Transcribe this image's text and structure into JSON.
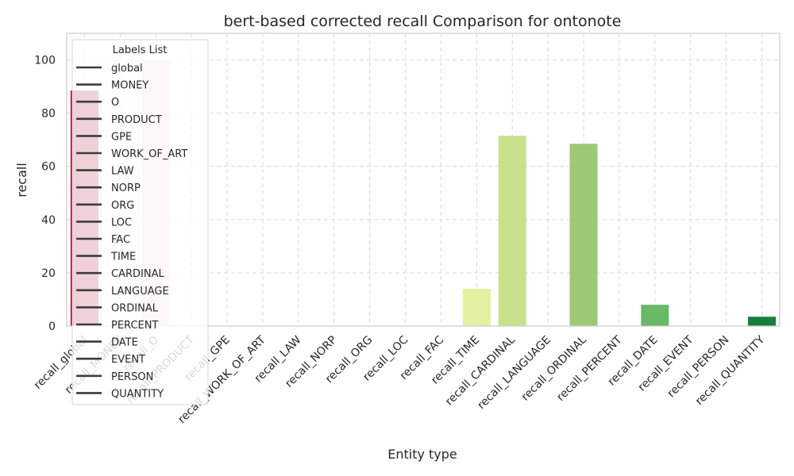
{
  "chart_data": {
    "type": "bar",
    "title": "bert-based corrected recall Comparison for ontonote",
    "xlabel": "Entity type",
    "ylabel": "recall",
    "ylim": [
      0,
      110
    ],
    "yticks": [
      0,
      20,
      40,
      60,
      80,
      100
    ],
    "grid": true,
    "categories": [
      "recall_global",
      "recall_MONEY",
      "recall_O",
      "recall_PRODUCT",
      "recall_GPE",
      "recall_WORK_OF_ART",
      "recall_LAW",
      "recall_NORP",
      "recall_ORG",
      "recall_LOC",
      "recall_FAC",
      "recall_TIME",
      "recall_CARDINAL",
      "recall_LANGUAGE",
      "recall_ORDINAL",
      "recall_PERCENT",
      "recall_DATE",
      "recall_EVENT",
      "recall_PERSON",
      "recall_QUANTITY"
    ],
    "values": [
      88.5,
      0,
      100,
      0,
      0,
      0,
      0,
      0,
      0,
      0,
      0,
      14,
      71.5,
      0,
      68.5,
      0,
      8,
      0,
      0,
      3.5
    ],
    "colors": [
      "#a50026",
      "#bb1526",
      "#f4d4d3",
      "#e75337",
      "#f67a49",
      "#fba05b",
      "#fdc171",
      "#fede89",
      "#ffffbe",
      "#fafdb8",
      "#f2f9b3",
      "#e2f0a0",
      "#c9e08c",
      "#b1d67d",
      "#9dc874",
      "#84ca66",
      "#67b966",
      "#44a85a",
      "#2a944f",
      "#157f3b"
    ],
    "legend": {
      "title": "Labels List",
      "position": "upper-left",
      "entries": [
        "global",
        "MONEY",
        "O",
        "PRODUCT",
        "GPE",
        "WORK_OF_ART",
        "LAW",
        "NORP",
        "ORG",
        "LOC",
        "FAC",
        "TIME",
        "CARDINAL",
        "LANGUAGE",
        "ORDINAL",
        "PERCENT",
        "DATE",
        "EVENT",
        "PERSON",
        "QUANTITY"
      ]
    }
  }
}
